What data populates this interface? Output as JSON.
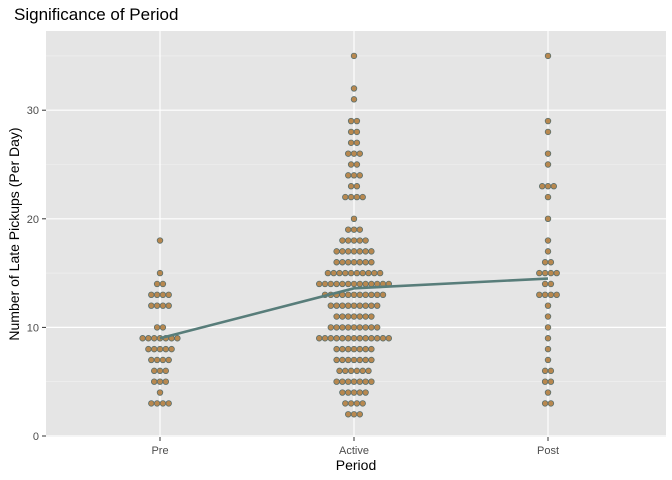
{
  "chart_data": {
    "type": "scatter",
    "title": "Significance of Period",
    "xlabel": "Period",
    "ylabel": "Number of Late Pickups (Per Day)",
    "categories": [
      "Pre",
      "Active",
      "Post"
    ],
    "y_ticks": [
      0,
      10,
      20,
      30
    ],
    "ylim": [
      -0.5,
      36.5
    ],
    "grid": true,
    "point_color": "#b8884f",
    "point_stroke": "#5a6e6c",
    "line_color": "#587d7a",
    "panel_bg": "#e5e5e5",
    "groups": [
      {
        "category": "Pre",
        "mean": 9.0,
        "points": [
          {
            "y": 18,
            "n": 1
          },
          {
            "y": 15,
            "n": 1
          },
          {
            "y": 14,
            "n": 2
          },
          {
            "y": 13,
            "n": 4
          },
          {
            "y": 12,
            "n": 4
          },
          {
            "y": 10,
            "n": 2
          },
          {
            "y": 9,
            "n": 7
          },
          {
            "y": 8,
            "n": 5
          },
          {
            "y": 7,
            "n": 4
          },
          {
            "y": 6,
            "n": 3
          },
          {
            "y": 5,
            "n": 3
          },
          {
            "y": 4,
            "n": 1
          },
          {
            "y": 3,
            "n": 4
          }
        ]
      },
      {
        "category": "Active",
        "mean": 13.6,
        "points": [
          {
            "y": 35,
            "n": 1
          },
          {
            "y": 32,
            "n": 1
          },
          {
            "y": 31,
            "n": 1
          },
          {
            "y": 29,
            "n": 2
          },
          {
            "y": 28,
            "n": 2
          },
          {
            "y": 27,
            "n": 2
          },
          {
            "y": 26,
            "n": 3
          },
          {
            "y": 25,
            "n": 2
          },
          {
            "y": 24,
            "n": 3
          },
          {
            "y": 23,
            "n": 2
          },
          {
            "y": 22,
            "n": 4
          },
          {
            "y": 20,
            "n": 1
          },
          {
            "y": 19,
            "n": 3
          },
          {
            "y": 18,
            "n": 5
          },
          {
            "y": 17,
            "n": 7
          },
          {
            "y": 16,
            "n": 7
          },
          {
            "y": 15,
            "n": 10
          },
          {
            "y": 14,
            "n": 13
          },
          {
            "y": 13,
            "n": 11
          },
          {
            "y": 12,
            "n": 9
          },
          {
            "y": 11,
            "n": 7
          },
          {
            "y": 10,
            "n": 9
          },
          {
            "y": 9,
            "n": 13
          },
          {
            "y": 8,
            "n": 7
          },
          {
            "y": 7,
            "n": 7
          },
          {
            "y": 6,
            "n": 6
          },
          {
            "y": 5,
            "n": 7
          },
          {
            "y": 4,
            "n": 5
          },
          {
            "y": 3,
            "n": 4
          },
          {
            "y": 2,
            "n": 3
          }
        ]
      },
      {
        "category": "Post",
        "mean": 14.5,
        "points": [
          {
            "y": 35,
            "n": 1
          },
          {
            "y": 29,
            "n": 1
          },
          {
            "y": 28,
            "n": 1
          },
          {
            "y": 26,
            "n": 1
          },
          {
            "y": 25,
            "n": 1
          },
          {
            "y": 23,
            "n": 3
          },
          {
            "y": 22,
            "n": 1
          },
          {
            "y": 20,
            "n": 1
          },
          {
            "y": 18,
            "n": 1
          },
          {
            "y": 17,
            "n": 1
          },
          {
            "y": 16,
            "n": 2
          },
          {
            "y": 15,
            "n": 4
          },
          {
            "y": 14,
            "n": 2
          },
          {
            "y": 13,
            "n": 4
          },
          {
            "y": 12,
            "n": 1
          },
          {
            "y": 11,
            "n": 1
          },
          {
            "y": 10,
            "n": 1
          },
          {
            "y": 9,
            "n": 1
          },
          {
            "y": 8,
            "n": 1
          },
          {
            "y": 7,
            "n": 1
          },
          {
            "y": 6,
            "n": 2
          },
          {
            "y": 5,
            "n": 2
          },
          {
            "y": 4,
            "n": 1
          },
          {
            "y": 3,
            "n": 2
          }
        ]
      }
    ]
  }
}
